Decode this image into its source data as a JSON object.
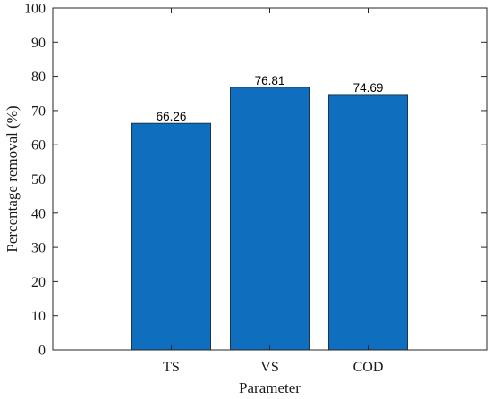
{
  "chart_data": {
    "type": "bar",
    "categories": [
      "TS",
      "VS",
      "COD"
    ],
    "values": [
      66.26,
      76.81,
      74.69
    ],
    "data_labels": [
      "66.26",
      "76.81",
      "74.69"
    ],
    "title": "",
    "xlabel": "Parameter",
    "ylabel": "Percentage removal (%)",
    "ylim": [
      0,
      100
    ],
    "yticks": [
      "0",
      "10",
      "20",
      "30",
      "40",
      "50",
      "60",
      "70",
      "80",
      "90",
      "100"
    ],
    "grid": false,
    "legend": "none",
    "bar_color": "#0f6fbe",
    "bar_edge_color": "#1c3550"
  }
}
